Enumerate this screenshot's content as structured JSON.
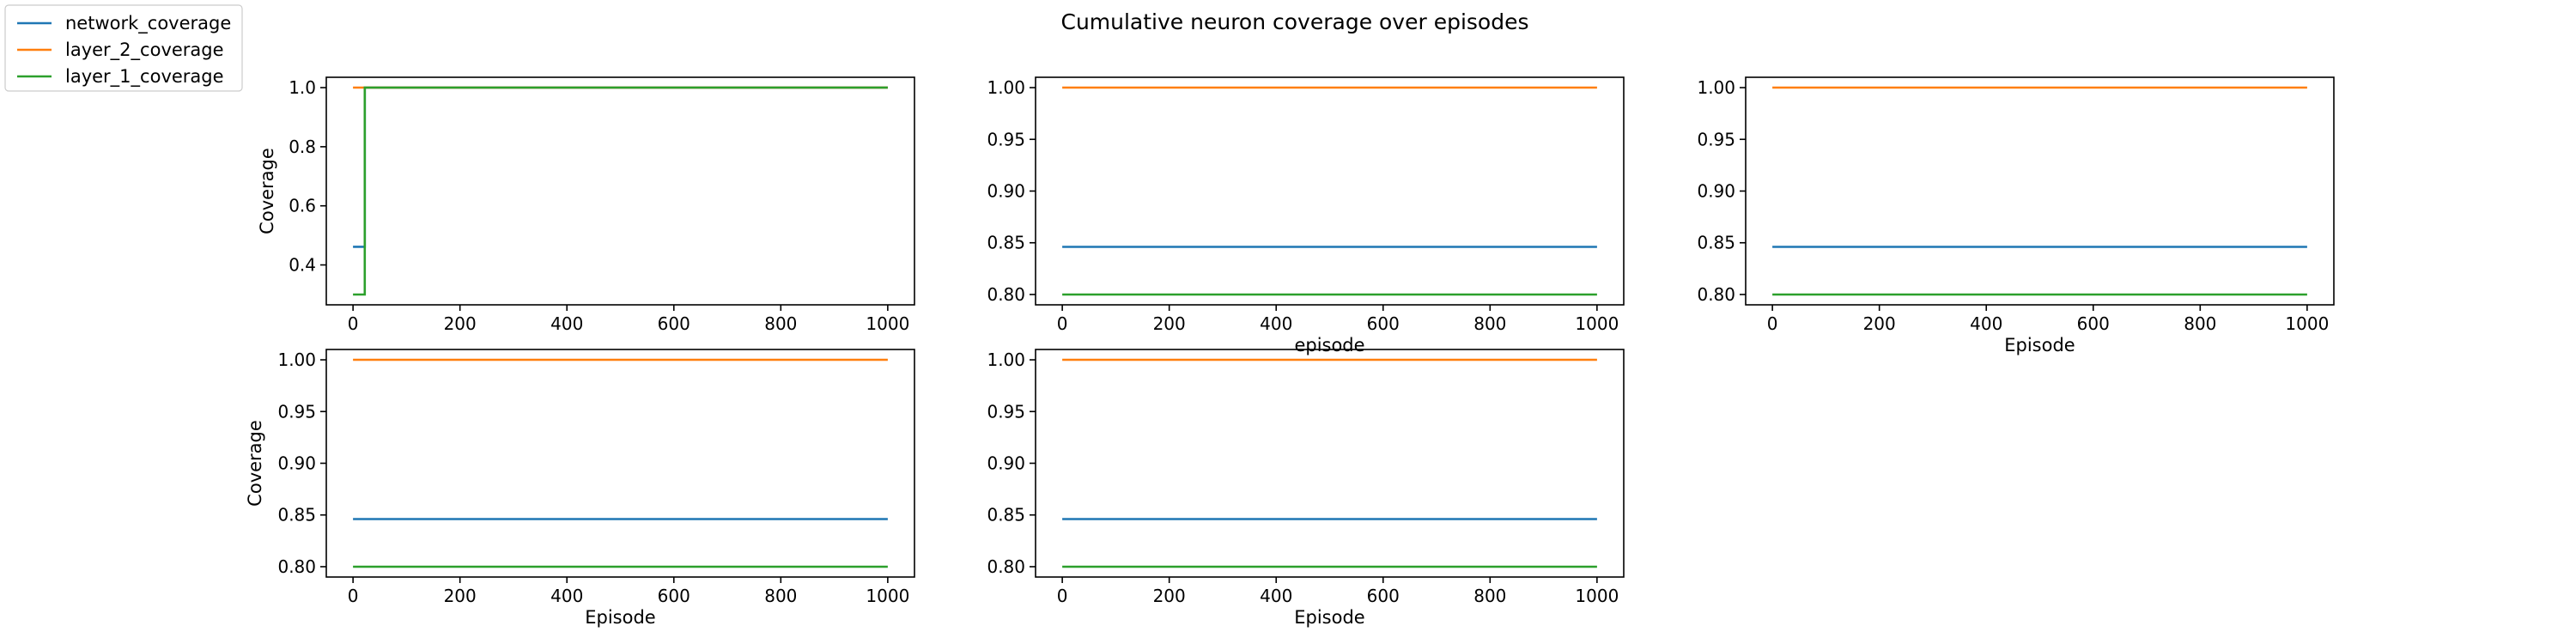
{
  "figure": {
    "title": "Cumulative neuron coverage over episodes"
  },
  "legend": {
    "entries": [
      {
        "name": "network_coverage",
        "color": "#1f77b4"
      },
      {
        "name": "layer_2_coverage",
        "color": "#ff7f0e"
      },
      {
        "name": "layer_1_coverage",
        "color": "#2ca02c"
      }
    ],
    "placement": "top-left"
  },
  "chart_data": [
    {
      "type": "line",
      "xlabel": "",
      "ylabel": "Coverage",
      "xlim": [
        -50,
        1050
      ],
      "ylim": [
        0.265,
        1.035
      ],
      "xticks": [
        0,
        200,
        400,
        600,
        800,
        1000
      ],
      "yticks": [
        0.4,
        0.6,
        0.8,
        1.0
      ],
      "ytick_labels": [
        "0.4",
        "0.6",
        "0.8",
        "1.0"
      ],
      "grid": false,
      "series": [
        {
          "name": "network_coverage",
          "color": "#1f77b4",
          "step": true,
          "x": [
            0,
            22,
            22,
            1000
          ],
          "y": [
            0.4615,
            0.4615,
            1.0,
            1.0
          ]
        },
        {
          "name": "layer_2_coverage",
          "color": "#ff7f0e",
          "step": true,
          "x": [
            0,
            1000
          ],
          "y": [
            1.0,
            1.0
          ]
        },
        {
          "name": "layer_1_coverage",
          "color": "#2ca02c",
          "step": true,
          "x": [
            0,
            22,
            22,
            1000
          ],
          "y": [
            0.3,
            0.3,
            1.0,
            1.0
          ]
        }
      ]
    },
    {
      "type": "line",
      "xlabel": "episode",
      "ylabel": "",
      "xlim": [
        -50,
        1050
      ],
      "ylim": [
        0.79,
        1.01
      ],
      "xticks": [
        0,
        200,
        400,
        600,
        800,
        1000
      ],
      "yticks": [
        0.8,
        0.85,
        0.9,
        0.95,
        1.0
      ],
      "ytick_labels": [
        "0.80",
        "0.85",
        "0.90",
        "0.95",
        "1.00"
      ],
      "grid": false,
      "series": [
        {
          "name": "network_coverage",
          "color": "#1f77b4",
          "x": [
            0,
            1000
          ],
          "y": [
            0.846,
            0.846
          ]
        },
        {
          "name": "layer_2_coverage",
          "color": "#ff7f0e",
          "x": [
            0,
            1000
          ],
          "y": [
            1.0,
            1.0
          ]
        },
        {
          "name": "layer_1_coverage",
          "color": "#2ca02c",
          "x": [
            0,
            1000
          ],
          "y": [
            0.8,
            0.8
          ]
        }
      ]
    },
    {
      "type": "line",
      "xlabel": "Episode",
      "ylabel": "",
      "xlim": [
        -50,
        1050
      ],
      "ylim": [
        0.79,
        1.01
      ],
      "xticks": [
        0,
        200,
        400,
        600,
        800,
        1000
      ],
      "yticks": [
        0.8,
        0.85,
        0.9,
        0.95,
        1.0
      ],
      "ytick_labels": [
        "0.80",
        "0.85",
        "0.90",
        "0.95",
        "1.00"
      ],
      "grid": false,
      "series": [
        {
          "name": "network_coverage",
          "color": "#1f77b4",
          "x": [
            0,
            1000
          ],
          "y": [
            0.846,
            0.846
          ]
        },
        {
          "name": "layer_2_coverage",
          "color": "#ff7f0e",
          "x": [
            0,
            1000
          ],
          "y": [
            1.0,
            1.0
          ]
        },
        {
          "name": "layer_1_coverage",
          "color": "#2ca02c",
          "x": [
            0,
            1000
          ],
          "y": [
            0.8,
            0.8
          ]
        }
      ]
    },
    {
      "type": "line",
      "xlabel": "Episode",
      "ylabel": "Coverage",
      "xlim": [
        -50,
        1050
      ],
      "ylim": [
        0.79,
        1.01
      ],
      "xticks": [
        0,
        200,
        400,
        600,
        800,
        1000
      ],
      "yticks": [
        0.8,
        0.85,
        0.9,
        0.95,
        1.0
      ],
      "ytick_labels": [
        "0.80",
        "0.85",
        "0.90",
        "0.95",
        "1.00"
      ],
      "grid": false,
      "series": [
        {
          "name": "network_coverage",
          "color": "#1f77b4",
          "x": [
            0,
            1000
          ],
          "y": [
            0.846,
            0.846
          ]
        },
        {
          "name": "layer_2_coverage",
          "color": "#ff7f0e",
          "x": [
            0,
            1000
          ],
          "y": [
            1.0,
            1.0
          ]
        },
        {
          "name": "layer_1_coverage",
          "color": "#2ca02c",
          "x": [
            0,
            1000
          ],
          "y": [
            0.8,
            0.8
          ]
        }
      ]
    },
    {
      "type": "line",
      "xlabel": "Episode",
      "ylabel": "",
      "xlim": [
        -50,
        1050
      ],
      "ylim": [
        0.79,
        1.01
      ],
      "xticks": [
        0,
        200,
        400,
        600,
        800,
        1000
      ],
      "yticks": [
        0.8,
        0.85,
        0.9,
        0.95,
        1.0
      ],
      "ytick_labels": [
        "0.80",
        "0.85",
        "0.90",
        "0.95",
        "1.00"
      ],
      "grid": false,
      "series": [
        {
          "name": "network_coverage",
          "color": "#1f77b4",
          "x": [
            0,
            1000
          ],
          "y": [
            0.846,
            0.846
          ]
        },
        {
          "name": "layer_2_coverage",
          "color": "#ff7f0e",
          "x": [
            0,
            1000
          ],
          "y": [
            1.0,
            1.0
          ]
        },
        {
          "name": "layer_1_coverage",
          "color": "#2ca02c",
          "x": [
            0,
            1000
          ],
          "y": [
            0.8,
            0.8
          ]
        }
      ]
    }
  ]
}
